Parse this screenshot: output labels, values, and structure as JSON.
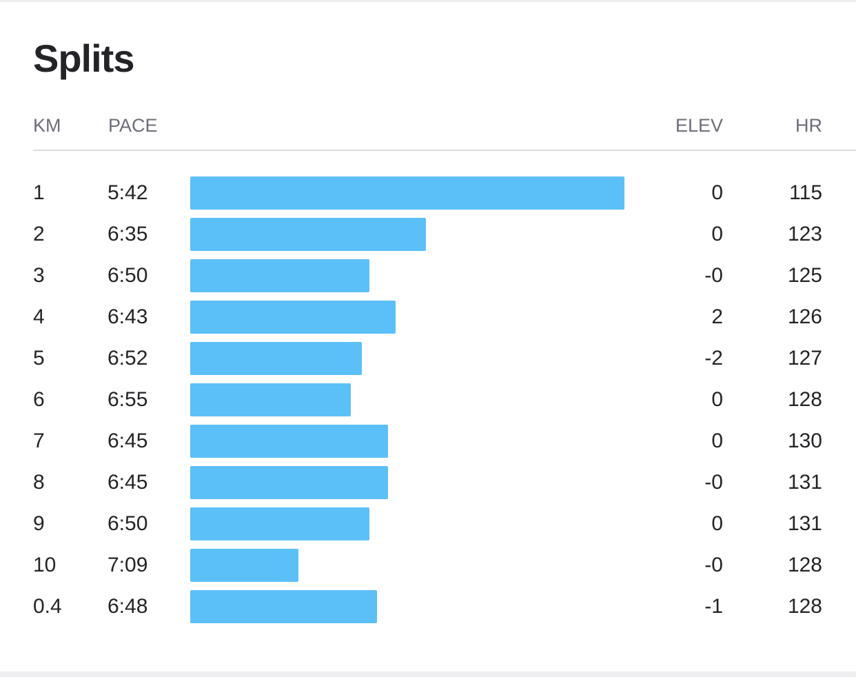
{
  "title": "Splits",
  "columns": {
    "km": "KM",
    "pace": "PACE",
    "elev": "ELEV",
    "hr": "HR"
  },
  "bar_color": "#5bc0f8",
  "chart_data": {
    "type": "bar",
    "categories": [
      "1",
      "2",
      "3",
      "4",
      "5",
      "6",
      "7",
      "8",
      "9",
      "10",
      "0.4"
    ],
    "pace": [
      "5:42",
      "6:35",
      "6:50",
      "6:43",
      "6:52",
      "6:55",
      "6:45",
      "6:45",
      "6:50",
      "7:09",
      "6:48"
    ],
    "elev": [
      "0",
      "0",
      "-0",
      "2",
      "-2",
      "0",
      "0",
      "-0",
      "0",
      "-0",
      "-1"
    ],
    "hr": [
      "115",
      "123",
      "125",
      "126",
      "127",
      "128",
      "130",
      "131",
      "131",
      "128",
      "128"
    ]
  }
}
